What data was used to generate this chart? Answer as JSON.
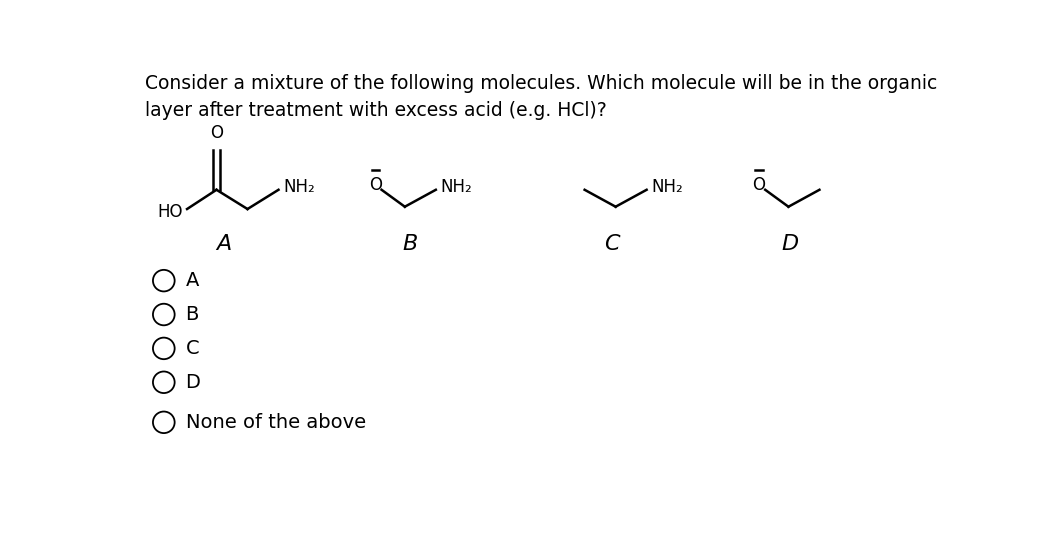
{
  "title_line1": "Consider a mixture of the following molecules. Which molecule will be in the organic",
  "title_line2": "layer after treatment with excess acid (e.g. HCl)?",
  "molecule_labels": [
    "A",
    "B",
    "C",
    "D"
  ],
  "answer_options": [
    "A",
    "B",
    "C",
    "D",
    "None of the above"
  ],
  "bg_color": "#ffffff",
  "text_color": "#000000",
  "title_fontsize": 13.5,
  "label_fontsize": 16,
  "option_fontsize": 14,
  "lw": 1.8
}
